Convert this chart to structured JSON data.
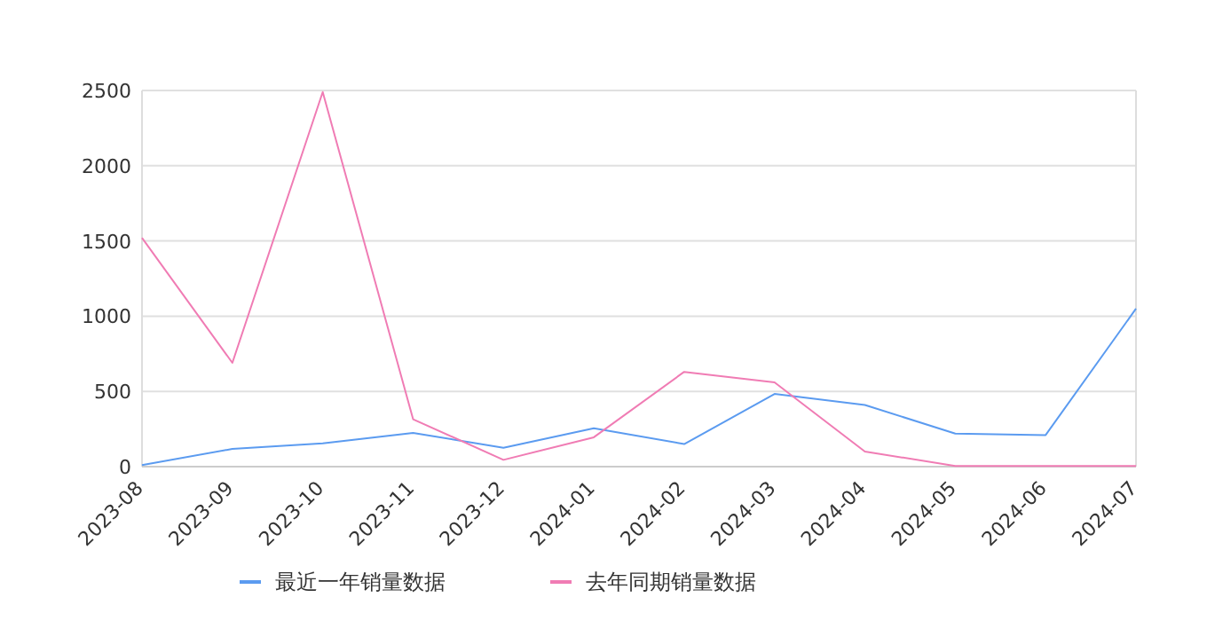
{
  "chart_data": {
    "type": "line",
    "categories": [
      "2023-08",
      "2023-09",
      "2023-10",
      "2023-11",
      "2023-12",
      "2024-01",
      "2024-02",
      "2024-03",
      "2024-04",
      "2024-05",
      "2024-06",
      "2024-07"
    ],
    "series": [
      {
        "name": "最近一年销量数据",
        "color": "#5b9bf0",
        "values": [
          10,
          118,
          155,
          224,
          125,
          255,
          150,
          483,
          410,
          220,
          210,
          1050
        ]
      },
      {
        "name": "去年同期销量数据",
        "color": "#f07cb4",
        "values": [
          1520,
          690,
          2490,
          315,
          45,
          195,
          630,
          560,
          100,
          5,
          5,
          5
        ]
      }
    ],
    "ylim": [
      0,
      2500
    ],
    "yticks": [
      0,
      500,
      1000,
      1500,
      2000,
      2500
    ],
    "grid": "y",
    "legend": "bottom",
    "marker": "none",
    "line_style": "solid"
  }
}
